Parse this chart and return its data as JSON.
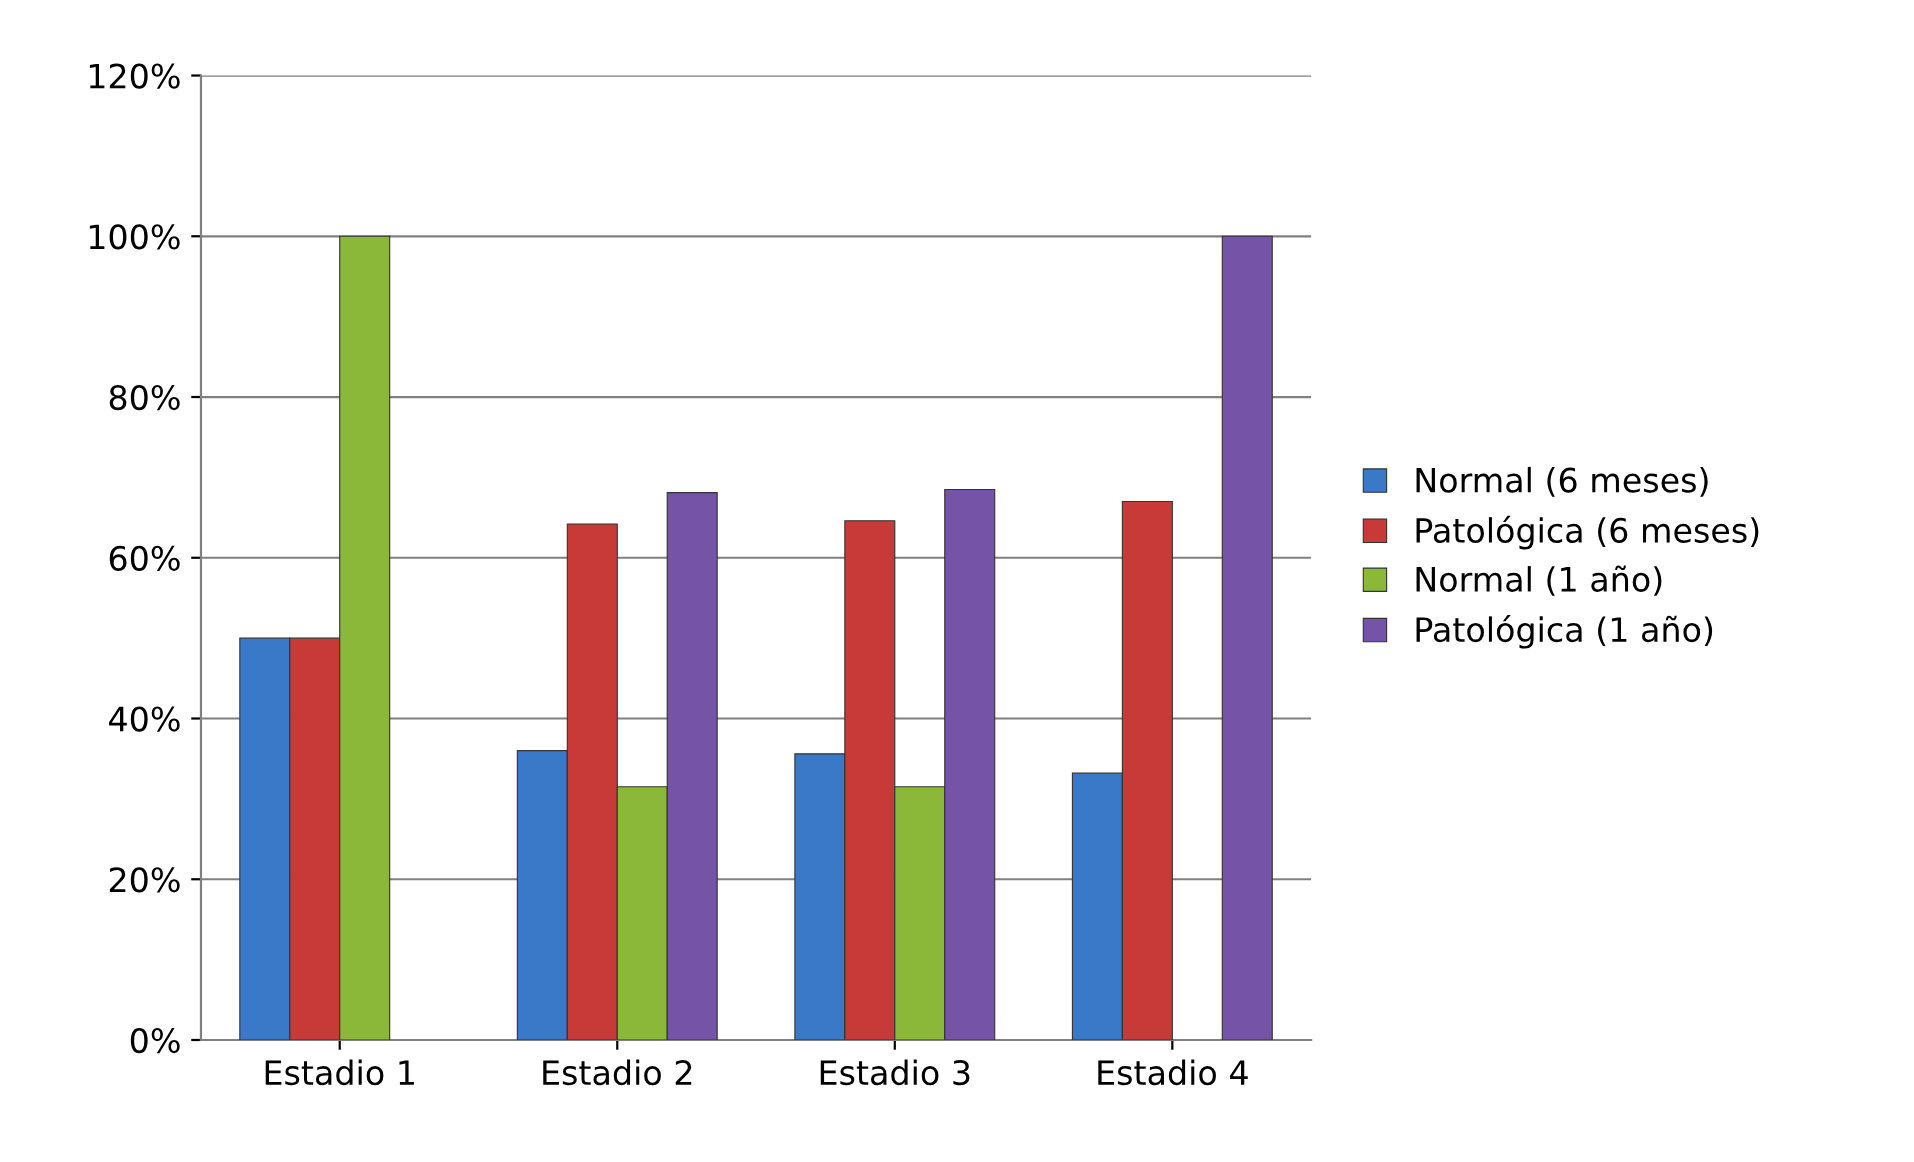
{
  "chart_data": {
    "type": "bar",
    "categories": [
      "Estadio 1",
      "Estadio 2",
      "Estadio 3",
      "Estadio 4"
    ],
    "series": [
      {
        "name": "Normal (6 meses)",
        "color": "#3a78c8",
        "values": [
          50,
          36,
          35.6,
          33.2
        ]
      },
      {
        "name": "Patológica (6 meses)",
        "color": "#c83a38",
        "values": [
          50,
          64.2,
          64.6,
          67
        ]
      },
      {
        "name": "Normal (1 año)",
        "color": "#8cb83a",
        "values": [
          100,
          31.5,
          31.5,
          null
        ]
      },
      {
        "name": "Patológica (1 año)",
        "color": "#7553a6",
        "values": [
          null,
          68.1,
          68.5,
          100
        ]
      }
    ],
    "ylim": [
      0,
      120
    ],
    "yticks": [
      {
        "value": 0,
        "label": "0%"
      },
      {
        "value": 20,
        "label": "20%"
      },
      {
        "value": 40,
        "label": "40%"
      },
      {
        "value": 60,
        "label": "60%"
      },
      {
        "value": 80,
        "label": "80%"
      },
      {
        "value": 100,
        "label": "100%"
      },
      {
        "value": 120,
        "label": "120%"
      }
    ],
    "grid": "y",
    "legend": "right"
  }
}
